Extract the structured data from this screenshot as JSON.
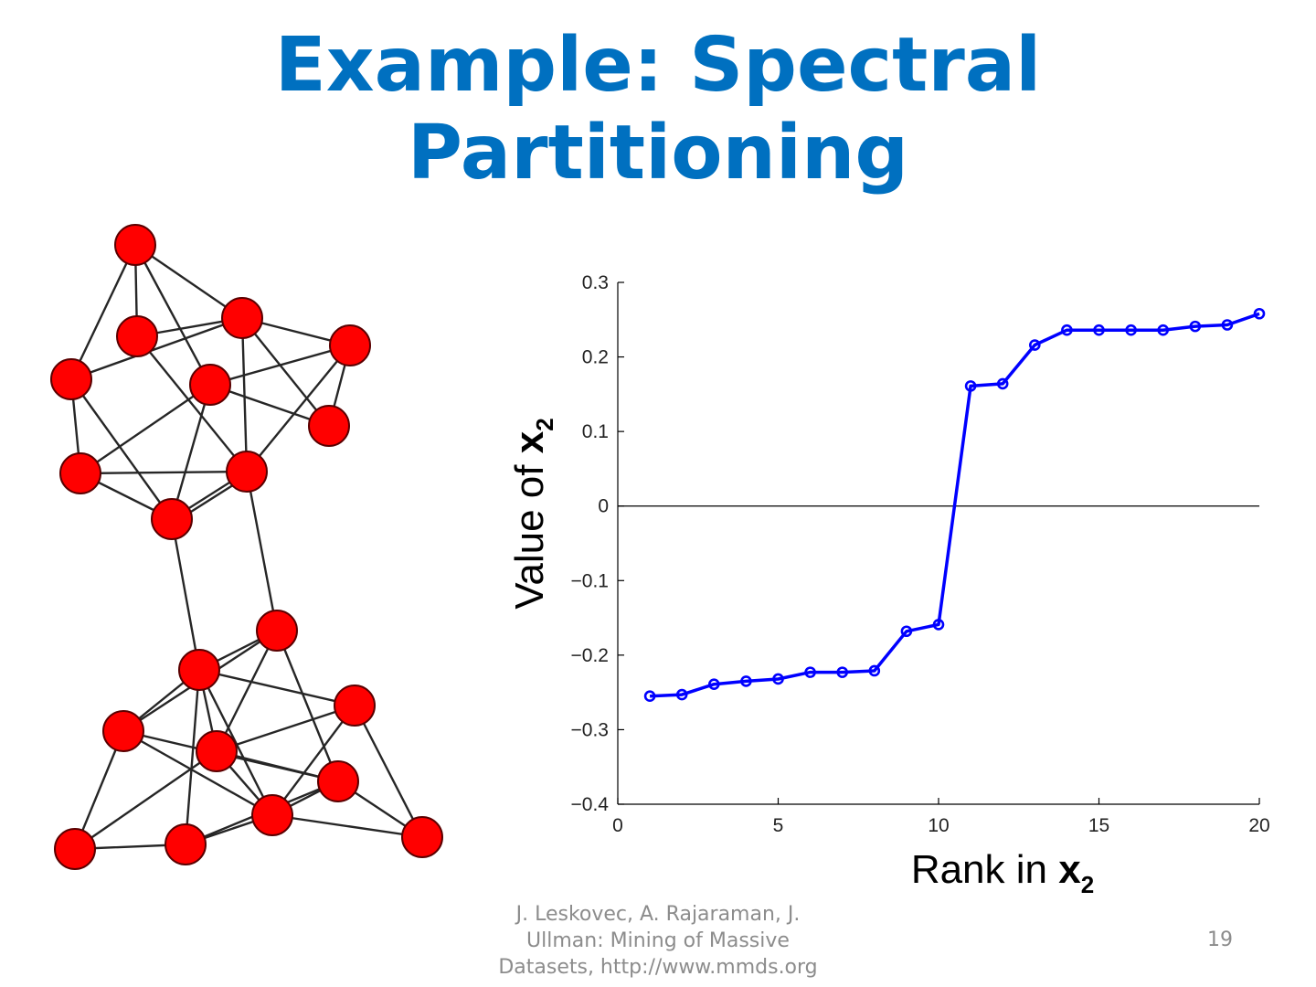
{
  "slide": {
    "title_lines": [
      "Example: Spectral",
      "Partitioning"
    ],
    "footer_lines": [
      "J. Leskovec, A. Rajaraman, J.",
      "Ullman: Mining of Massive",
      "Datasets, http://www.mmds.org"
    ],
    "page_number": "19"
  },
  "colors": {
    "title": "#0070C0",
    "node_fill": "#ff0000",
    "series": "#0000ff",
    "footer": "#8c8c8c"
  },
  "chart_data": {
    "type": "line",
    "xlabel": "Rank in ",
    "xlabel_bold": "x",
    "xlabel_sub": "2",
    "ylabel": "Value of ",
    "ylabel_bold": "x",
    "ylabel_sub": "2",
    "xlim": [
      0,
      20
    ],
    "ylim": [
      -0.4,
      0.3
    ],
    "xticks": [
      0,
      5,
      10,
      15,
      20
    ],
    "xtick_labels": [
      "0",
      "5",
      "10",
      "15",
      "20"
    ],
    "yticks": [
      0.3,
      0.2,
      0.1,
      0,
      -0.1,
      -0.2,
      -0.3,
      -0.4
    ],
    "ytick_labels": [
      "0.3",
      "0.2",
      "0.1",
      "0",
      "−0.1",
      "−0.2",
      "−0.3",
      "−0.4"
    ],
    "zero_line": true,
    "marker": "circle",
    "series": [
      {
        "x": [
          1,
          2,
          3,
          4,
          5,
          6,
          7,
          8,
          9,
          10,
          11,
          12,
          13,
          14,
          15,
          16,
          17,
          18,
          19,
          20
        ],
        "values": [
          -0.255,
          -0.253,
          -0.239,
          -0.235,
          -0.232,
          -0.223,
          -0.223,
          -0.221,
          -0.168,
          -0.159,
          0.161,
          0.164,
          0.216,
          0.236,
          0.236,
          0.236,
          0.236,
          0.241,
          0.243,
          0.258
        ]
      }
    ]
  }
}
